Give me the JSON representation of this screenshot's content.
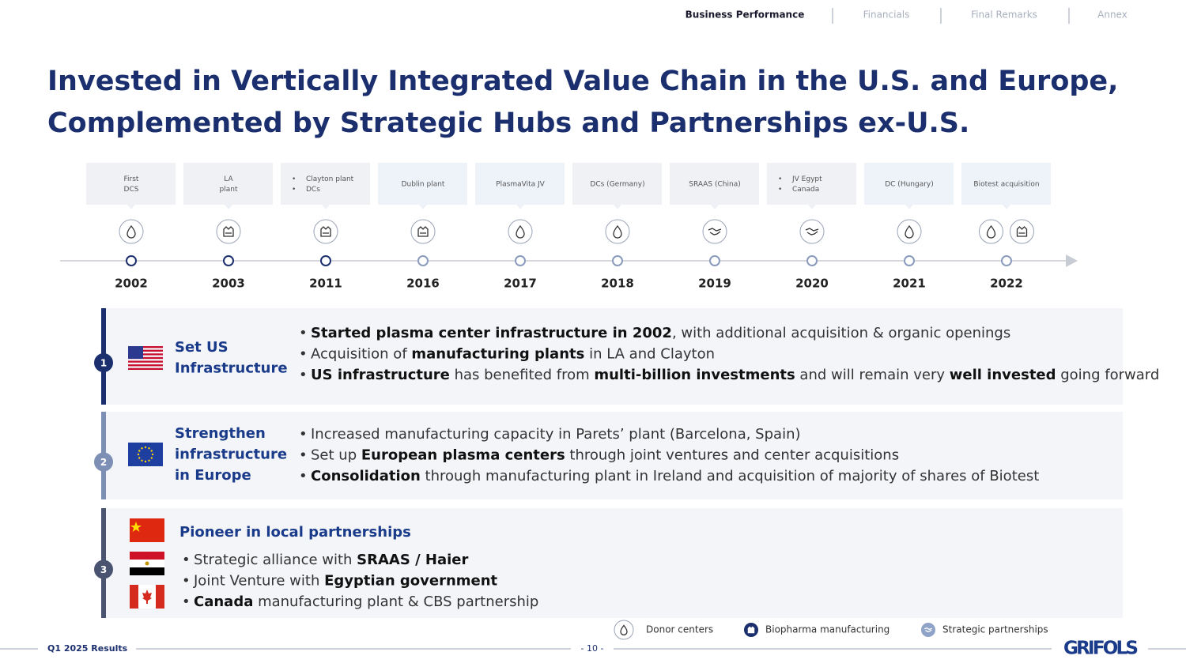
{
  "nav": {
    "items": [
      "Business Performance",
      "Financials",
      "Final Remarks",
      "Annex"
    ],
    "active": 0
  },
  "title": [
    "Invested in Vertically Integrated Value Chain in the U.S. and Europe,",
    "Complemented by Strategic Hubs and Partnerships ex-U.S."
  ],
  "timeline": [
    {
      "year": "2002",
      "label": [
        "First",
        "DCS"
      ],
      "icons": [
        "donor"
      ]
    },
    {
      "year": "2003",
      "label": [
        "LA",
        "plant"
      ],
      "icons": [
        "manufacturing"
      ]
    },
    {
      "year": "2011",
      "label": [
        "Clayton plant",
        "DCs"
      ],
      "bulleted": true,
      "icons": [
        "manufacturing"
      ]
    },
    {
      "year": "2016",
      "label": [
        "Dublin plant"
      ],
      "icons": [
        "manufacturing"
      ]
    },
    {
      "year": "2017",
      "label": [
        "PlasmaVita JV"
      ],
      "icons": [
        "donor"
      ]
    },
    {
      "year": "2018",
      "label": [
        "DCs (Germany)"
      ],
      "icons": [
        "donor"
      ]
    },
    {
      "year": "2019",
      "label": [
        "SRAAS (China)"
      ],
      "icons": [
        "partnership"
      ]
    },
    {
      "year": "2020",
      "label": [
        "JV Egypt",
        "Canada"
      ],
      "bulleted": true,
      "icons": [
        "partnership"
      ]
    },
    {
      "year": "2021",
      "label": [
        "DC (Hungary)"
      ],
      "icons": [
        "donor"
      ]
    },
    {
      "year": "2022",
      "label": [
        "Biotest acquisition"
      ],
      "icons": [
        "donor",
        "manufacturing"
      ]
    }
  ],
  "pillars": [
    {
      "number": "1",
      "flags": [
        "us"
      ],
      "heading": [
        "Set US",
        "Infrastructure"
      ],
      "bullets": [
        [
          {
            "text": "Started plasma center infrastructure in 2002",
            "bold": true
          },
          {
            "text": ", with additional acquisition & organic openings"
          }
        ],
        [
          {
            "text": "Acquisition of "
          },
          {
            "text": "manufacturing plants",
            "bold": true
          },
          {
            "text": " in LA and Clayton"
          }
        ],
        [
          {
            "text": "US infrastructure",
            "bold": true
          },
          {
            "text": " has benefited from "
          },
          {
            "text": "multi-billion investments",
            "bold": true
          },
          {
            "text": " and will remain very "
          },
          {
            "text": "well invested",
            "bold": true
          },
          {
            "text": " going forward"
          }
        ]
      ]
    },
    {
      "number": "2",
      "flags": [
        "eu"
      ],
      "heading": [
        "Strengthen",
        "infrastructure",
        "in Europe"
      ],
      "bullets": [
        [
          {
            "text": "Increased manufacturing capacity in Parets’ plant (Barcelona, Spain)"
          }
        ],
        [
          {
            "text": "Set up "
          },
          {
            "text": "European plasma centers",
            "bold": true
          },
          {
            "text": " through joint ventures and center acquisitions"
          }
        ],
        [
          {
            "text": "Consolidation",
            "bold": true
          },
          {
            "text": " through manufacturing plant in Ireland and acquisition of majority of shares of Biotest"
          }
        ]
      ]
    },
    {
      "number": "3",
      "flags": [
        "cn",
        "eg",
        "ca"
      ],
      "heading": [
        "Pioneer in local partnerships"
      ],
      "bullets": [
        [
          {
            "text": "Strategic alliance with "
          },
          {
            "text": "SRAAS / Haier",
            "bold": true
          }
        ],
        [
          {
            "text": "Joint Venture with "
          },
          {
            "text": "Egyptian government",
            "bold": true
          }
        ],
        [
          {
            "text": "Canada",
            "bold": true
          },
          {
            "text": " manufacturing plant & CBS partnership"
          }
        ]
      ]
    }
  ],
  "legend": [
    {
      "icon": "donor",
      "label": "Donor centers"
    },
    {
      "icon": "manufacturing",
      "label": "Biopharma manufacturing"
    },
    {
      "icon": "partnership",
      "label": "Strategic partnerships"
    }
  ],
  "footer": {
    "left": "Q1 2025 Results",
    "page": "- 10 -",
    "logo": "GRIFOLS"
  }
}
